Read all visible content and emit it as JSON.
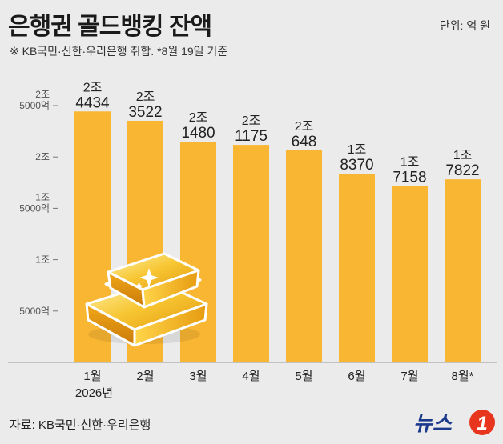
{
  "header": {
    "title": "은행권 골드뱅킹 잔액",
    "unit": "단위: 억 원",
    "note": "※ KB국민·신한·우리은행 취합.  *8월 19일 기준"
  },
  "footer": {
    "source": "자료: KB국민·신한·우리은행",
    "logo_text": "뉴스"
  },
  "colors": {
    "bar": "#f9b632",
    "background": "#ebebeb",
    "logo_accent": "#e8351e"
  },
  "chart_data": {
    "type": "bar",
    "categories": [
      "1월",
      "2월",
      "3월",
      "4월",
      "5월",
      "6월",
      "7월",
      "8월*"
    ],
    "year_label": "2026년",
    "values": [
      24434,
      23522,
      21480,
      21175,
      20648,
      18370,
      17158,
      17822
    ],
    "value_labels": [
      {
        "top": "2조",
        "bottom": "4434"
      },
      {
        "top": "2조",
        "bottom": "3522"
      },
      {
        "top": "2조",
        "bottom": "1480"
      },
      {
        "top": "2조",
        "bottom": "1175"
      },
      {
        "top": "2조",
        "bottom": "648"
      },
      {
        "top": "1조",
        "bottom": "8370"
      },
      {
        "top": "1조",
        "bottom": "7158"
      },
      {
        "top": "1조",
        "bottom": "7822"
      }
    ],
    "yticks": [
      {
        "value": 5000,
        "lines": [
          "5000억"
        ]
      },
      {
        "value": 10000,
        "lines": [
          "1조"
        ]
      },
      {
        "value": 15000,
        "lines": [
          "1조",
          "5000억"
        ]
      },
      {
        "value": 20000,
        "lines": [
          "2조"
        ]
      },
      {
        "value": 25000,
        "lines": [
          "2조",
          "5000억"
        ]
      }
    ],
    "ylim": [
      0,
      25000
    ],
    "grid": false,
    "decoration": "gold-bars-illustration"
  }
}
